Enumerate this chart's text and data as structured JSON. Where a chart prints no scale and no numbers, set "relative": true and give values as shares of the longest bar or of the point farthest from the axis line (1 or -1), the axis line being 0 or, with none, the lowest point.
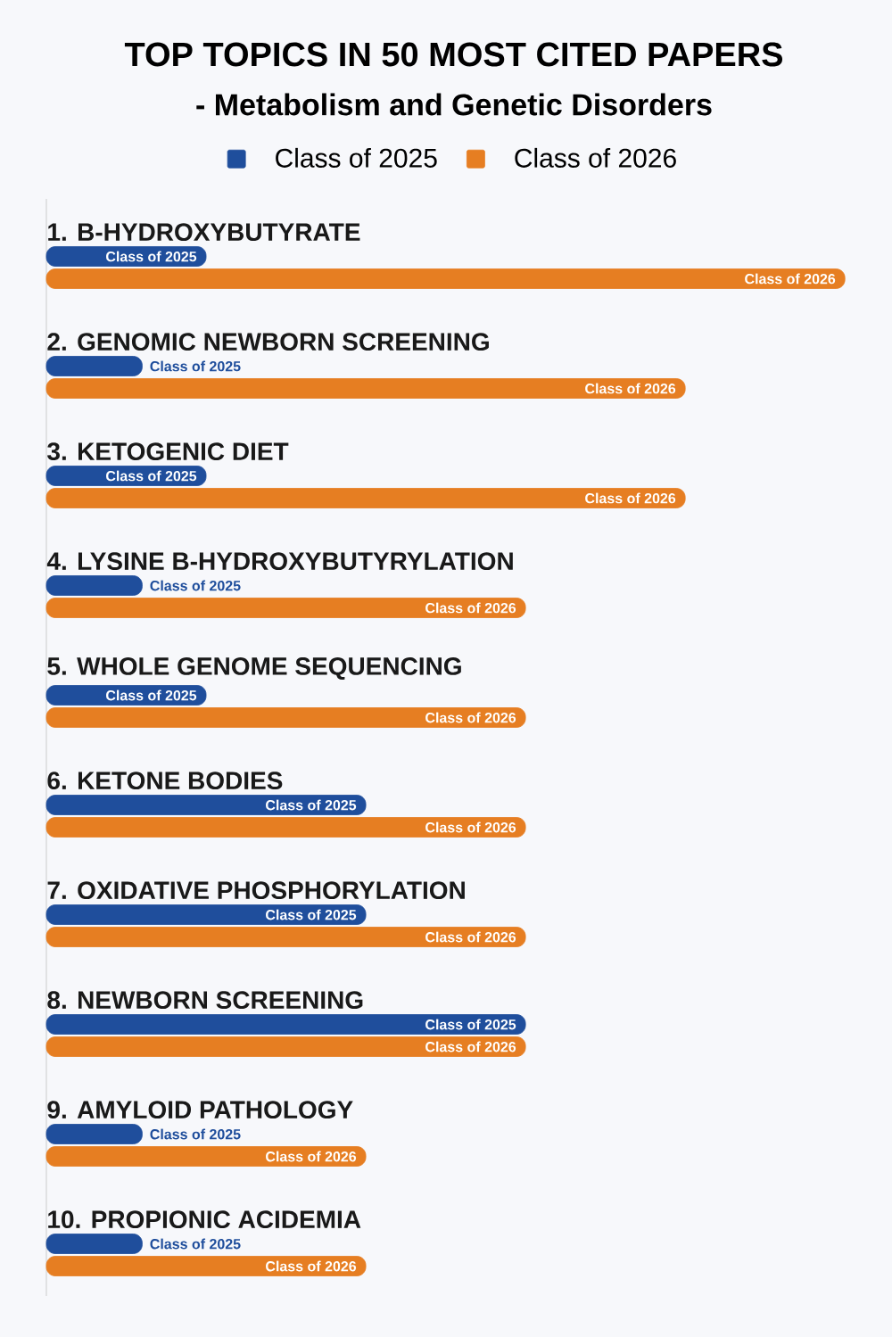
{
  "chart_data": {
    "type": "bar",
    "orientation": "horizontal",
    "relative": true,
    "title": "TOP TOPICS IN 50 MOST CITED PAPERS",
    "subtitle": "- Metabolism and Genetic Disorders",
    "legend": "top",
    "data_labels": false,
    "categories": [
      "1. B-HYDROXYBUTYRATE",
      "2. GENOMIC NEWBORN SCREENING",
      "3. KETOGENIC DIET",
      "4. LYSINE B-HYDROXYBUTYRYLATION",
      "5. WHOLE GENOME SEQUENCING",
      "6. KETONE BODIES",
      "7. OXIDATIVE PHOSPHORYLATION",
      "8. NEWBORN SCREENING",
      "9. AMYLOID PATHOLOGY",
      "10. PROPIONIC ACIDEMIA"
    ],
    "series": [
      {
        "name": "Class of 2025",
        "color": "#1f4e9c",
        "values": [
          0.2,
          0.12,
          0.2,
          0.12,
          0.2,
          0.4,
          0.4,
          0.6,
          0.12,
          0.12
        ]
      },
      {
        "name": "Class of 2026",
        "color": "#e67e22",
        "values": [
          1,
          0.8,
          0.8,
          0.6,
          0.6,
          0.6,
          0.6,
          0.6,
          0.4,
          0.4
        ]
      }
    ]
  }
}
